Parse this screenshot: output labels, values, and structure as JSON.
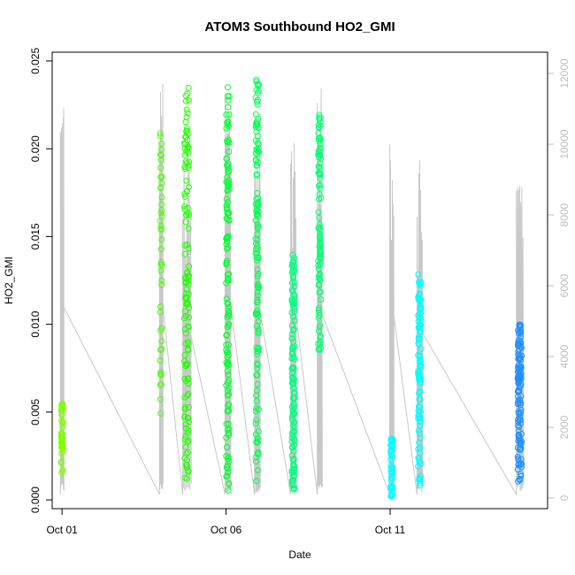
{
  "chart_data": {
    "type": "scatter",
    "title": "ATOM3 Southbound HO2_GMI",
    "xlabel": "Date",
    "ylabel": "HO2_GMI",
    "x_ticks": [
      {
        "label": "Oct 01",
        "day": 1
      },
      {
        "label": "Oct 06",
        "day": 6
      },
      {
        "label": "Oct 11",
        "day": 11
      }
    ],
    "y_ticks": [
      "0.000",
      "0.005",
      "0.010",
      "0.015",
      "0.020",
      "0.025"
    ],
    "y2_ticks": [
      "0",
      "2000",
      "4000",
      "6000",
      "8000",
      "10000",
      "12000"
    ],
    "xlim": [
      0.7,
      15.8
    ],
    "ylim": [
      -0.0005,
      0.0255
    ],
    "y2lim": [
      -300,
      12600
    ],
    "grid": false,
    "colors": {
      "altitude_line": "#c8c8c8",
      "right_axis": "#bebebe",
      "points_ramp": [
        "#80ff00",
        "#00ff40",
        "#00ffff",
        "#0080ff"
      ]
    },
    "flights": [
      {
        "day": 1.0,
        "spread": 0.05,
        "ymin": 0.0015,
        "ymax": 0.0055,
        "alt_max": 12000,
        "color": "#80ff00",
        "n": 45
      },
      {
        "day": 4.02,
        "spread": 0.05,
        "ymin": 0.0048,
        "ymax": 0.021,
        "alt_max": 12100,
        "color": "#44ff00",
        "n": 45
      },
      {
        "day": 4.8,
        "spread": 0.12,
        "ymin": 0.001,
        "ymax": 0.0235,
        "alt_max": 10300,
        "color": "#22ff00",
        "n": 130
      },
      {
        "day": 6.05,
        "spread": 0.08,
        "ymin": 0.0005,
        "ymax": 0.0237,
        "alt_max": 12300,
        "color": "#00ff30",
        "n": 130
      },
      {
        "day": 6.95,
        "spread": 0.08,
        "ymin": 0.001,
        "ymax": 0.0245,
        "alt_max": 11800,
        "color": "#00ff50",
        "n": 130
      },
      {
        "day": 8.05,
        "spread": 0.08,
        "ymin": 0.0005,
        "ymax": 0.014,
        "alt_max": 11600,
        "color": "#00ff80",
        "n": 130
      },
      {
        "day": 8.85,
        "spread": 0.07,
        "ymin": 0.0085,
        "ymax": 0.023,
        "alt_max": 11600,
        "color": "#00ff70",
        "n": 100
      },
      {
        "day": 11.05,
        "spread": 0.06,
        "ymin": 0.0002,
        "ymax": 0.0035,
        "alt_max": 11500,
        "color": "#00ffff",
        "n": 60
      },
      {
        "day": 11.9,
        "spread": 0.08,
        "ymin": 0.0005,
        "ymax": 0.013,
        "alt_max": 10400,
        "color": "#00ffff",
        "n": 110
      },
      {
        "day": 14.95,
        "spread": 0.1,
        "ymin": 0.001,
        "ymax": 0.01,
        "alt_max": 10100,
        "color": "#1e90ff",
        "n": 130
      }
    ]
  }
}
